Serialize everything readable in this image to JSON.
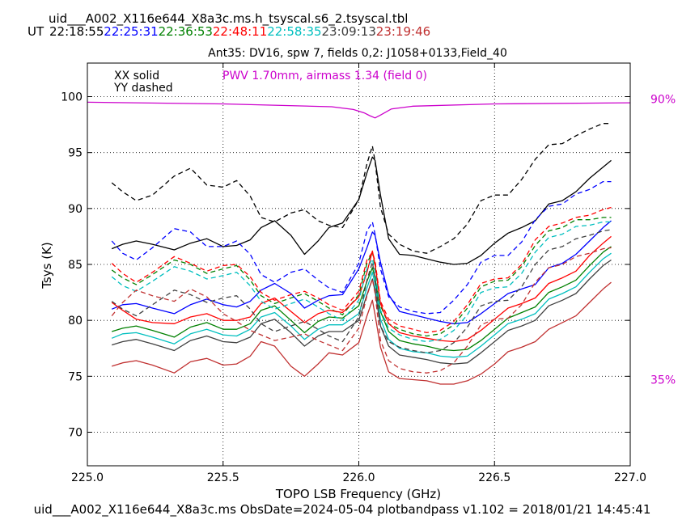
{
  "header": {
    "filename": "uid___A002_X116e644_X8a3c.ms.h_tsyscal.s6_2.tsyscal.tbl",
    "ut_label": "UT",
    "times": [
      {
        "text": "22:18:55",
        "color": "#000000"
      },
      {
        "text": "22:25:31",
        "color": "#0000ff"
      },
      {
        "text": "22:36:53",
        "color": "#008000"
      },
      {
        "text": "22:48:11",
        "color": "#ff0000"
      },
      {
        "text": "22:58:35",
        "color": "#00bfbf"
      },
      {
        "text": "23:09:13",
        "color": "#404040"
      },
      {
        "text": "23:19:46",
        "color": "#c03030"
      }
    ]
  },
  "footer": "uid___A002_X116e644_X8a3c.ms  ObsDate=2024-05-04   plotbandpass v1.102 = 2018/01/21 14:45:41",
  "chart_data": {
    "type": "line",
    "title": "Ant35: DV16,  spw 7,  fields 0,2: J1058+0133,Field_40",
    "xlabel": "TOPO LSB Frequency (GHz)",
    "ylabel": "Tsys (K)",
    "xlim": [
      225.0,
      227.0
    ],
    "ylim": [
      67.0,
      103.0
    ],
    "xticks": [
      "225.0",
      "225.5",
      "226.0",
      "226.5",
      "227.0"
    ],
    "yticks": [
      "70",
      "75",
      "80",
      "85",
      "90",
      "95",
      "100"
    ],
    "grid": true,
    "legend_lines": [
      "XX solid",
      "YY dashed"
    ],
    "pwv_annotation": "PWV 1.70mm, airmass 1.34 (field 0)",
    "right_labels": [
      {
        "text": "90%",
        "y": 99.8
      },
      {
        "text": "35%",
        "y": 74.7
      }
    ],
    "pwv_curve": {
      "color": "#cc00cc",
      "x": [
        225.0,
        225.5,
        225.9,
        225.98,
        226.02,
        226.04,
        226.06,
        226.08,
        226.12,
        226.2,
        226.5,
        227.0
      ],
      "y": [
        99.5,
        99.35,
        99.1,
        98.85,
        98.55,
        98.3,
        98.1,
        98.35,
        98.9,
        99.15,
        99.35,
        99.45
      ]
    },
    "x_common": [
      225.09,
      225.13,
      225.18,
      225.24,
      225.32,
      225.38,
      225.44,
      225.5,
      225.55,
      225.6,
      225.64,
      225.69,
      225.75,
      225.8,
      225.85,
      225.89,
      225.94,
      226.0,
      226.03,
      226.05,
      226.06,
      226.08,
      226.11,
      226.15,
      226.2,
      226.25,
      226.3,
      226.35,
      226.4,
      226.45,
      226.5,
      226.55,
      226.6,
      226.65,
      226.7,
      226.75,
      226.8,
      226.85,
      226.9,
      226.93
    ],
    "series": [
      {
        "time": "22:18:55",
        "pol": "XX",
        "color": "#000000",
        "dashed": false,
        "y": [
          86.4,
          86.8,
          87.1,
          86.8,
          86.3,
          86.9,
          87.3,
          86.6,
          86.7,
          87.2,
          88.3,
          88.9,
          87.6,
          85.9,
          87.1,
          88.3,
          88.7,
          90.8,
          93.2,
          94.6,
          94.3,
          91.2,
          87.3,
          85.9,
          85.8,
          85.5,
          85.2,
          85.0,
          85.1,
          85.8,
          86.9,
          87.8,
          88.3,
          88.9,
          90.4,
          90.7,
          91.5,
          92.7,
          93.7,
          94.3
        ]
      },
      {
        "time": "22:18:55",
        "pol": "YY",
        "color": "#000000",
        "dashed": true,
        "y": [
          92.3,
          91.5,
          90.7,
          91.2,
          92.9,
          93.6,
          92.1,
          91.9,
          92.5,
          91.1,
          89.2,
          88.8,
          89.6,
          89.9,
          88.9,
          88.5,
          88.3,
          90.8,
          94.0,
          95.6,
          94.2,
          90.1,
          87.7,
          86.8,
          86.2,
          86.0,
          86.6,
          87.3,
          88.6,
          90.7,
          91.2,
          91.2,
          92.6,
          94.4,
          95.7,
          95.8,
          96.5,
          97.1,
          97.6,
          97.6
        ]
      },
      {
        "time": "22:25:31",
        "pol": "XX",
        "color": "#0000ff",
        "dashed": false,
        "y": [
          81.0,
          81.4,
          81.5,
          81.1,
          80.6,
          81.4,
          81.9,
          81.4,
          81.2,
          81.7,
          82.7,
          83.3,
          82.4,
          81.1,
          81.8,
          82.2,
          82.3,
          84.6,
          86.5,
          87.9,
          87.6,
          85.2,
          82.3,
          80.8,
          80.5,
          80.2,
          79.9,
          79.7,
          79.8,
          80.6,
          81.5,
          82.4,
          82.8,
          83.2,
          84.7,
          85.1,
          85.9,
          87.1,
          88.3,
          88.9
        ]
      },
      {
        "time": "22:25:31",
        "pol": "YY",
        "color": "#0000ff",
        "dashed": true,
        "y": [
          87.1,
          86.0,
          85.4,
          86.5,
          88.2,
          87.9,
          86.6,
          86.6,
          87.1,
          85.9,
          84.1,
          83.4,
          84.3,
          84.6,
          83.6,
          82.9,
          82.5,
          85.1,
          88.0,
          88.8,
          87.7,
          84.6,
          82.1,
          81.2,
          80.8,
          80.6,
          80.7,
          81.8,
          83.2,
          85.2,
          85.8,
          85.8,
          87.0,
          89.0,
          90.2,
          90.4,
          91.3,
          91.7,
          92.4,
          92.4
        ]
      },
      {
        "time": "22:36:53",
        "pol": "XX",
        "color": "#008000",
        "dashed": false,
        "y": [
          79.0,
          79.3,
          79.5,
          79.1,
          78.5,
          79.4,
          79.8,
          79.2,
          79.2,
          79.7,
          80.9,
          81.3,
          80.0,
          78.9,
          79.9,
          80.3,
          80.2,
          81.3,
          83.5,
          84.7,
          83.8,
          80.8,
          79.0,
          78.2,
          77.9,
          77.7,
          77.4,
          77.3,
          77.4,
          78.2,
          79.2,
          80.2,
          80.7,
          81.2,
          82.5,
          83.0,
          83.6,
          84.9,
          86.1,
          86.6
        ]
      },
      {
        "time": "22:36:53",
        "pol": "YY",
        "color": "#008000",
        "dashed": true,
        "y": [
          84.5,
          83.8,
          83.2,
          84.1,
          85.4,
          85.0,
          84.2,
          84.6,
          84.9,
          83.6,
          82.2,
          81.5,
          82.0,
          82.4,
          81.7,
          81.1,
          80.5,
          82.3,
          85.1,
          86.1,
          84.8,
          81.3,
          79.7,
          79.2,
          78.8,
          78.6,
          78.8,
          79.6,
          81.1,
          83.0,
          83.5,
          83.6,
          84.8,
          86.7,
          88.0,
          88.3,
          89.0,
          89.0,
          89.2,
          89.2
        ]
      },
      {
        "time": "22:48:11",
        "pol": "XX",
        "color": "#ff0000",
        "dashed": false,
        "y": [
          81.6,
          80.9,
          80.1,
          79.8,
          79.7,
          80.3,
          80.6,
          80.0,
          80.0,
          80.3,
          81.5,
          82.0,
          80.8,
          79.8,
          80.6,
          80.9,
          80.7,
          82.1,
          84.3,
          86.2,
          85.0,
          81.5,
          79.7,
          78.9,
          78.6,
          78.4,
          78.2,
          78.1,
          78.3,
          79.1,
          80.1,
          81.1,
          81.5,
          82.0,
          83.3,
          83.8,
          84.4,
          85.8,
          86.9,
          87.5
        ]
      },
      {
        "time": "22:48:11",
        "pol": "YY",
        "color": "#ff0000",
        "dashed": true,
        "y": [
          85.1,
          84.2,
          83.4,
          84.3,
          85.7,
          85.1,
          84.4,
          84.9,
          85.0,
          83.9,
          82.5,
          81.8,
          82.3,
          82.6,
          82.0,
          81.4,
          80.9,
          82.6,
          85.4,
          86.1,
          85.3,
          81.7,
          80.1,
          79.5,
          79.2,
          78.9,
          79.1,
          79.9,
          81.4,
          83.3,
          83.7,
          83.8,
          85.0,
          87.2,
          88.4,
          88.7,
          89.2,
          89.4,
          89.9,
          90.1
        ]
      },
      {
        "time": "22:58:35",
        "pol": "XX",
        "color": "#00bfbf",
        "dashed": false,
        "y": [
          78.4,
          78.8,
          78.9,
          78.5,
          77.9,
          78.8,
          79.2,
          78.7,
          78.6,
          79.2,
          80.3,
          80.7,
          79.5,
          78.3,
          79.2,
          79.6,
          79.6,
          80.6,
          82.9,
          84.3,
          83.2,
          80.1,
          78.3,
          77.5,
          77.2,
          77.1,
          76.8,
          76.7,
          76.8,
          77.7,
          78.7,
          79.7,
          80.1,
          80.6,
          81.9,
          82.4,
          83.0,
          84.3,
          85.5,
          86.0
        ]
      },
      {
        "time": "22:58:35",
        "pol": "YY",
        "color": "#00bfbf",
        "dashed": true,
        "y": [
          83.9,
          83.1,
          82.6,
          83.5,
          84.8,
          84.4,
          83.7,
          84.0,
          84.3,
          83.1,
          81.7,
          81.0,
          81.5,
          81.9,
          81.2,
          80.6,
          80.0,
          81.8,
          84.6,
          85.5,
          84.3,
          80.9,
          79.3,
          78.7,
          78.3,
          78.1,
          78.3,
          79.1,
          80.5,
          82.5,
          82.9,
          83.0,
          84.2,
          86.1,
          87.4,
          87.7,
          88.4,
          88.5,
          88.8,
          88.8
        ]
      },
      {
        "time": "23:09:13",
        "pol": "XX",
        "color": "#404040",
        "dashed": false,
        "y": [
          77.8,
          78.1,
          78.3,
          77.9,
          77.3,
          78.2,
          78.6,
          78.1,
          78.0,
          78.5,
          79.7,
          80.1,
          78.9,
          77.7,
          78.6,
          79.0,
          79.0,
          80.0,
          82.3,
          83.7,
          82.6,
          79.5,
          77.7,
          76.9,
          76.7,
          76.5,
          76.2,
          76.1,
          76.2,
          77.1,
          78.1,
          79.1,
          79.5,
          80.0,
          81.3,
          81.8,
          82.4,
          83.7,
          84.9,
          85.4
        ]
      },
      {
        "time": "23:09:13",
        "pol": "YY",
        "color": "#404040",
        "dashed": true,
        "y": [
          81.7,
          81.0,
          80.4,
          81.4,
          82.7,
          82.3,
          81.6,
          82.0,
          82.2,
          81.0,
          79.7,
          79.0,
          79.5,
          79.9,
          79.2,
          78.6,
          78.1,
          80.3,
          83.6,
          85.2,
          83.7,
          79.5,
          78.1,
          77.6,
          77.3,
          77.1,
          77.3,
          78.0,
          79.4,
          81.3,
          81.7,
          81.8,
          83.0,
          85.0,
          86.3,
          86.6,
          87.3,
          87.6,
          88.0,
          88.1
        ]
      },
      {
        "time": "23:19:46",
        "pol": "XX",
        "color": "#c03030",
        "dashed": false,
        "y": [
          75.9,
          76.2,
          76.4,
          76.0,
          75.3,
          76.3,
          76.6,
          76.0,
          76.1,
          76.8,
          78.1,
          77.7,
          75.9,
          75.0,
          76.1,
          77.1,
          76.9,
          78.0,
          80.4,
          81.8,
          80.5,
          77.6,
          75.4,
          74.8,
          74.7,
          74.6,
          74.3,
          74.3,
          74.6,
          75.2,
          76.1,
          77.2,
          77.6,
          78.1,
          79.2,
          79.8,
          80.4,
          81.6,
          82.8,
          83.4
        ]
      },
      {
        "time": "23:19:46",
        "pol": "YY",
        "color": "#c03030",
        "dashed": true,
        "y": [
          80.4,
          81.6,
          82.7,
          82.2,
          81.7,
          82.8,
          82.1,
          80.6,
          79.9,
          79.1,
          78.7,
          78.2,
          78.5,
          78.8,
          78.2,
          77.8,
          77.3,
          79.3,
          82.2,
          83.7,
          82.4,
          78.2,
          76.4,
          75.7,
          75.4,
          75.3,
          75.5,
          76.2,
          77.7,
          79.6,
          80.1,
          80.2,
          81.4,
          83.4,
          84.7,
          85.0,
          85.7,
          86.0,
          86.4,
          86.5
        ]
      }
    ]
  }
}
